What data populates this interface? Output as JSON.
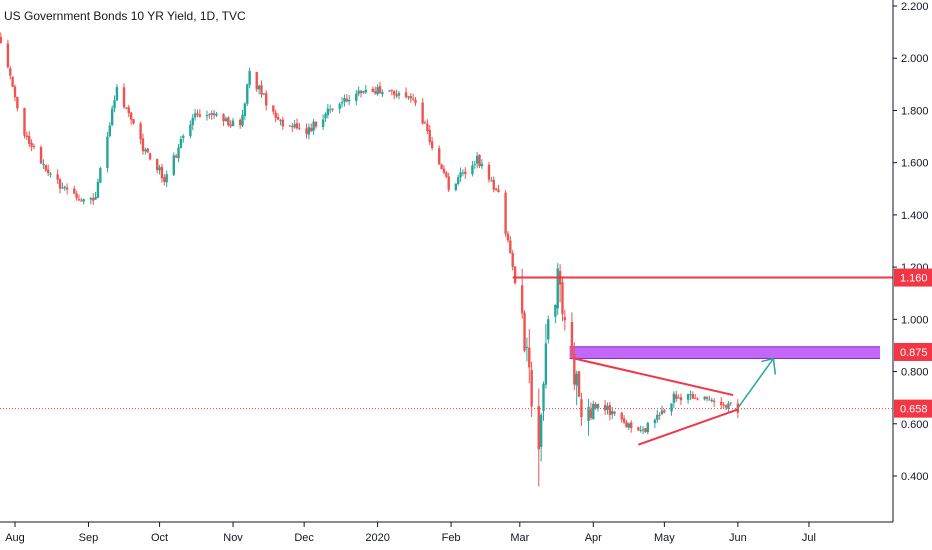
{
  "chart_data": {
    "type": "candlestick",
    "title": "US Government Bonds 10 YR Yield, 1D, TVC",
    "x_ticks": [
      "Aug",
      "Sep",
      "Oct",
      "Nov",
      "Dec",
      "2020",
      "Feb",
      "Mar",
      "Apr",
      "May",
      "Jun",
      "Jul"
    ],
    "y_ticks": [
      "0.400",
      "0.600",
      "0.800",
      "1.000",
      "1.200",
      "1.400",
      "1.600",
      "1.800",
      "2.000",
      "2.200"
    ],
    "ylim": [
      0.22,
      2.2
    ],
    "grid": false,
    "price_labels": [
      {
        "value": 1.16,
        "text": "1.160",
        "color": "#f23645"
      },
      {
        "value": 0.875,
        "text": "0.875",
        "color": "#f23645"
      },
      {
        "value": 0.658,
        "text": "0.658",
        "color": "#f23645"
      }
    ],
    "anchors": [
      {
        "date": "2019-07-25",
        "value": 2.09
      },
      {
        "date": "2019-08-05",
        "value": 1.72
      },
      {
        "date": "2019-08-15",
        "value": 1.55
      },
      {
        "date": "2019-08-27",
        "value": 1.46
      },
      {
        "date": "2019-09-04",
        "value": 1.47
      },
      {
        "date": "2019-09-13",
        "value": 1.89
      },
      {
        "date": "2019-09-24",
        "value": 1.66
      },
      {
        "date": "2019-10-03",
        "value": 1.54
      },
      {
        "date": "2019-10-15",
        "value": 1.77
      },
      {
        "date": "2019-10-25",
        "value": 1.79
      },
      {
        "date": "2019-11-04",
        "value": 1.73
      },
      {
        "date": "2019-11-08",
        "value": 1.94
      },
      {
        "date": "2019-11-20",
        "value": 1.76
      },
      {
        "date": "2019-12-03",
        "value": 1.72
      },
      {
        "date": "2019-12-13",
        "value": 1.82
      },
      {
        "date": "2019-12-27",
        "value": 1.88
      },
      {
        "date": "2020-01-08",
        "value": 1.87
      },
      {
        "date": "2020-01-17",
        "value": 1.83
      },
      {
        "date": "2020-01-31",
        "value": 1.51
      },
      {
        "date": "2020-02-12",
        "value": 1.62
      },
      {
        "date": "2020-02-21",
        "value": 1.47
      },
      {
        "date": "2020-02-28",
        "value": 1.15
      },
      {
        "date": "2020-03-09",
        "value": 0.54
      },
      {
        "date": "2020-03-13",
        "value": 0.96
      },
      {
        "date": "2020-03-18",
        "value": 1.18
      },
      {
        "date": "2020-03-20",
        "value": 0.94
      },
      {
        "date": "2020-03-27",
        "value": 0.68
      },
      {
        "date": "2020-04-06",
        "value": 0.66
      },
      {
        "date": "2020-04-21",
        "value": 0.56
      },
      {
        "date": "2020-05-06",
        "value": 0.71
      },
      {
        "date": "2020-05-26",
        "value": 0.68
      },
      {
        "date": "2020-06-01",
        "value": 0.658
      }
    ],
    "outlier_lows": [
      {
        "date": "2020-03-09",
        "low": 0.36
      }
    ],
    "drawings": [
      {
        "type": "horizontal_ray",
        "start": "2020-02-27",
        "value": 1.16,
        "color": "#f23645"
      },
      {
        "type": "zone",
        "start": "2020-03-22",
        "end": "2020-07-31",
        "low": 0.85,
        "high": 0.895,
        "color": "#b94cf5"
      },
      {
        "type": "trendline",
        "from": {
          "date": "2020-03-24",
          "value": 0.85
        },
        "to": {
          "date": "2020-05-30",
          "value": 0.71
        },
        "color": "#f23645"
      },
      {
        "type": "trendline",
        "from": {
          "date": "2020-04-20",
          "value": 0.52
        },
        "to": {
          "date": "2020-06-01",
          "value": 0.655
        },
        "color": "#f23645"
      },
      {
        "type": "arrow",
        "from": {
          "date": "2020-06-01",
          "value": 0.66
        },
        "to": {
          "date": "2020-06-16",
          "value": 0.85
        },
        "color": "#26a69a"
      },
      {
        "type": "dotted_hline",
        "value": 0.658,
        "color": "#f23645"
      }
    ],
    "colors": {
      "up": "#26a69a",
      "down": "#ef5350",
      "axis": "#131722",
      "label_red": "#f23645"
    }
  }
}
